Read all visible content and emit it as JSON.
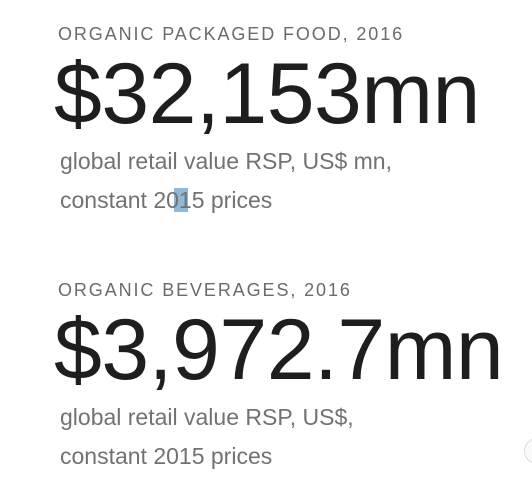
{
  "blocks": [
    {
      "label": "ORGANIC PACKAGED FOOD, 2016",
      "value": "$32,153mn",
      "description": [
        "global retail value RSP, US$ mn,",
        "constant 2015 prices"
      ]
    },
    {
      "label": "ORGANIC BEVERAGES, 2016",
      "value": "$3,972.7mn",
      "description": [
        "global retail value RSP, US$,",
        "constant 2015 prices"
      ]
    }
  ]
}
